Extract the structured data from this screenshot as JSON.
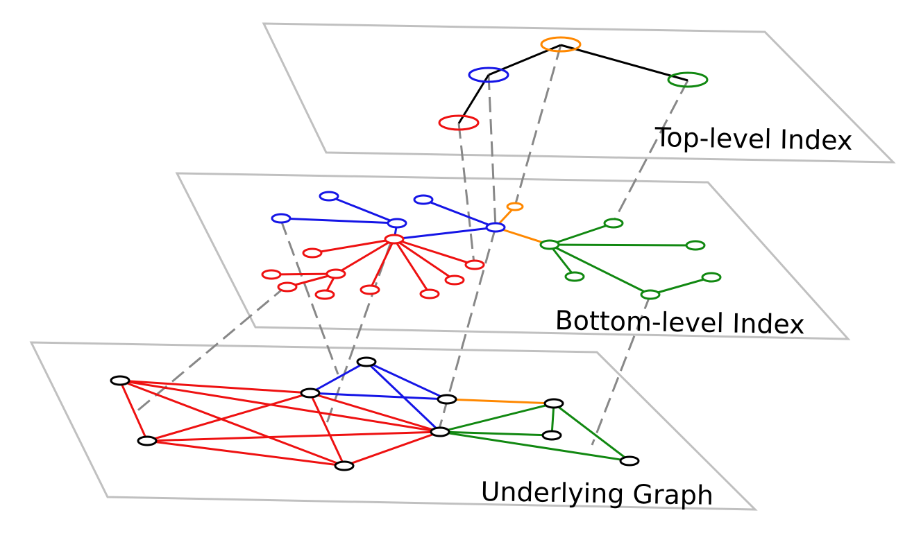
{
  "layers": {
    "top": {
      "label": "Top-level Index"
    },
    "bottom": {
      "label": "Bottom-level Index"
    },
    "graph": {
      "label": "Underlying Graph"
    }
  },
  "colors": {
    "plane": "#c0c0c0",
    "link": "#888888",
    "red": "#ee1111",
    "blue": "#1515e6",
    "green": "#118811",
    "orange": "#ff8800",
    "black": "#000000"
  }
}
